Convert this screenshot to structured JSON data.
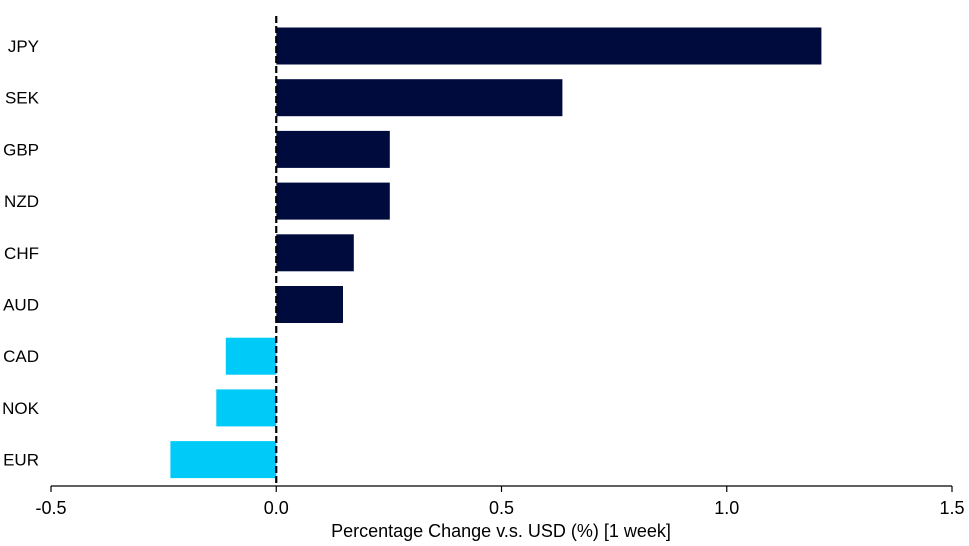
{
  "chart_data": {
    "type": "bar",
    "orientation": "horizontal",
    "title": "",
    "xlabel": "Percentage Change v.s. USD (%) [1 week]",
    "ylabel": "",
    "categories": [
      "JPY",
      "SEK",
      "GBP",
      "NZD",
      "CHF",
      "AUD",
      "CAD",
      "NOK",
      "EUR"
    ],
    "values": [
      1.21,
      0.635,
      0.252,
      0.252,
      0.172,
      0.148,
      -0.112,
      -0.133,
      -0.235
    ],
    "xlim": [
      -0.5,
      1.5
    ],
    "xticks": [
      -0.5,
      0.0,
      0.5,
      1.0,
      1.5
    ],
    "xtick_labels": [
      "-0.5",
      "0.0",
      "0.5",
      "1.0",
      "1.5"
    ],
    "grid": false,
    "legend": "none",
    "colors": {
      "positive": "#000b3d",
      "negative": "#00cbf8",
      "axis": "#000000"
    }
  }
}
